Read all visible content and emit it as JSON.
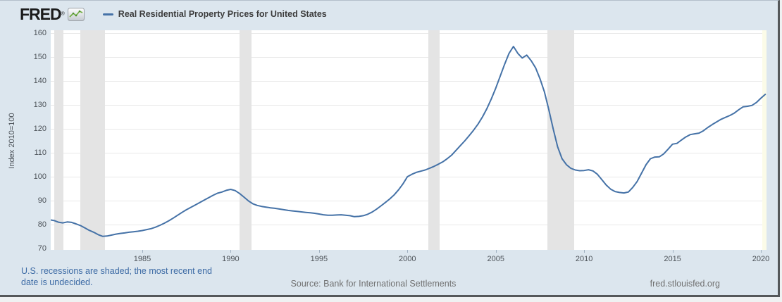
{
  "header": {
    "logo": "FRED",
    "logo_registered": "®",
    "series_title": "Real Residential Property Prices for United States"
  },
  "footer": {
    "recession_note": "U.S. recessions are shaded; the most recent end date is undecided.",
    "source": "Source: Bank for International Settlements",
    "site": "fred.stlouisfed.org"
  },
  "colors": {
    "line": "#4572a7",
    "widget_background": "#dce6ee",
    "plot_background": "#ffffff",
    "recession_band": "#e4e4e4",
    "ongoing_recession_band": "#fbfbe8",
    "gridline": "#e9e9e9",
    "note_blue": "#3d6ba5",
    "footer_gray": "#707070",
    "logo_icon_green": "#6fae3e",
    "border_dark": "#55585a"
  },
  "chart_data": {
    "type": "line",
    "title": "Real Residential Property Prices for United States",
    "ylabel": "Index 2010=100",
    "xlabel": "",
    "ylim": [
      70,
      160
    ],
    "xlim": [
      1979.8,
      2020.33
    ],
    "grid": true,
    "legend_position": "top-left",
    "y_ticks": [
      70,
      80,
      90,
      100,
      110,
      120,
      130,
      140,
      150,
      160
    ],
    "x_ticks": [
      1985,
      1990,
      1995,
      2000,
      2005,
      2010,
      2015,
      2020
    ],
    "frequency": "quarterly",
    "x_start": 1979.75,
    "x_step": 0.25,
    "values": [
      82.0,
      81.7,
      81.0,
      80.7,
      81.1,
      80.9,
      80.3,
      79.6,
      78.6,
      77.6,
      76.8,
      75.8,
      75.1,
      75.2,
      75.6,
      76.0,
      76.3,
      76.5,
      76.8,
      77.0,
      77.2,
      77.5,
      77.9,
      78.3,
      78.9,
      79.7,
      80.6,
      81.6,
      82.7,
      83.9,
      85.1,
      86.2,
      87.2,
      88.2,
      89.2,
      90.2,
      91.2,
      92.2,
      93.1,
      93.6,
      94.3,
      94.7,
      94.2,
      93.0,
      91.5,
      89.9,
      88.7,
      88.0,
      87.6,
      87.3,
      87.0,
      86.8,
      86.5,
      86.2,
      85.9,
      85.7,
      85.5,
      85.3,
      85.1,
      84.9,
      84.7,
      84.4,
      84.1,
      83.9,
      83.9,
      84.0,
      84.1,
      83.9,
      83.7,
      83.3,
      83.4,
      83.7,
      84.3,
      85.2,
      86.4,
      87.8,
      89.2,
      90.7,
      92.4,
      94.5,
      97.0,
      100.0,
      101.0,
      101.8,
      102.3,
      102.8,
      103.5,
      104.3,
      105.2,
      106.2,
      107.5,
      109.0,
      111.0,
      113.0,
      115.0,
      117.2,
      119.5,
      122.0,
      125.0,
      128.5,
      132.5,
      137.0,
      142.0,
      147.0,
      151.5,
      154.4,
      151.5,
      149.6,
      150.8,
      148.5,
      145.5,
      141.0,
      135.5,
      128.0,
      120.0,
      112.5,
      107.5,
      105.0,
      103.5,
      102.8,
      102.5,
      102.6,
      102.9,
      102.4,
      101.0,
      98.8,
      96.5,
      94.8,
      93.8,
      93.4,
      93.2,
      93.6,
      95.5,
      98.0,
      101.5,
      105.0,
      107.5,
      108.2,
      108.3,
      109.5,
      111.5,
      113.6,
      113.9,
      115.3,
      116.6,
      117.6,
      117.9,
      118.2,
      119.2,
      120.6,
      121.8,
      122.9,
      124.0,
      124.8,
      125.6,
      126.6,
      128.0,
      129.2,
      129.4,
      129.8,
      131.0,
      132.8,
      134.4
    ],
    "recessions": [
      [
        1980.0,
        1980.55
      ],
      [
        1981.5,
        1982.87
      ],
      [
        1990.5,
        1991.17
      ],
      [
        2001.17,
        2001.83
      ],
      [
        2007.92,
        2009.42
      ]
    ],
    "ongoing_recession_start": 2020.08
  }
}
